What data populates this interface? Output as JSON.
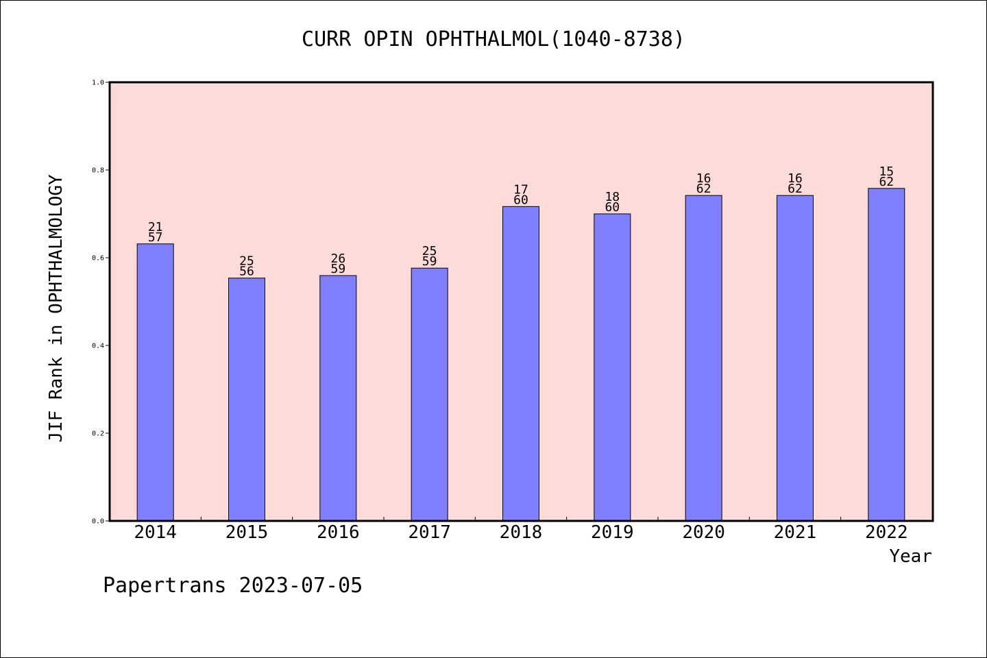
{
  "chart_data": {
    "type": "bar",
    "title": "CURR OPIN OPHTHALMOL(1040-8738)",
    "xlabel": "Year",
    "ylabel": "JIF Rank in OPHTHALMOLOGY",
    "ylim": [
      0,
      1.0
    ],
    "yticks": [
      "0.0",
      "0.2",
      "0.4",
      "0.6",
      "0.8",
      "1.0"
    ],
    "grid": false,
    "categories": [
      "2014",
      "2015",
      "2016",
      "2017",
      "2018",
      "2019",
      "2020",
      "2021",
      "2022"
    ],
    "values": [
      0.6316,
      0.5536,
      0.5593,
      0.5763,
      0.7167,
      0.7,
      0.7419,
      0.7419,
      0.7581
    ],
    "rank": [
      "21",
      "25",
      "26",
      "25",
      "17",
      "18",
      "16",
      "16",
      "15"
    ],
    "total": [
      "57",
      "56",
      "59",
      "59",
      "60",
      "60",
      "62",
      "62",
      "62"
    ],
    "footer": "Papertrans 2023-07-05",
    "colors": {
      "plot_background": "#ffdbd9",
      "bar_fill": "#8080ff",
      "bar_stroke": "#000000",
      "text": "#000000"
    }
  }
}
